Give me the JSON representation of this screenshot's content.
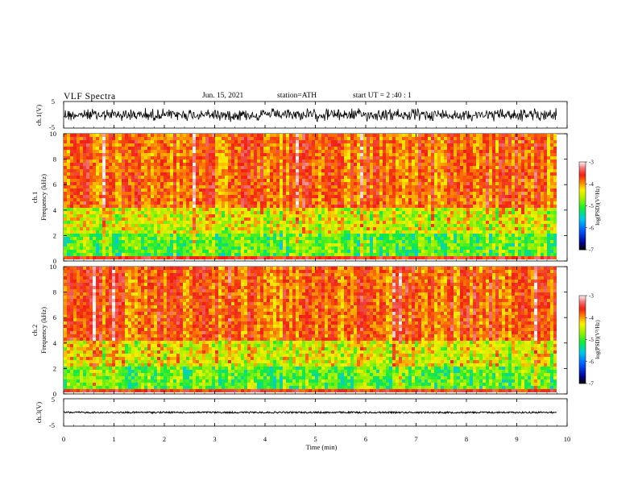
{
  "header": {
    "title": "VLF  Spectra",
    "date": "Jun. 15, 2021",
    "station": "station=ATH",
    "start": "start  UT  =    2  :40 : 1"
  },
  "chart_data": [
    {
      "type": "line",
      "panel": "ch1-waveform",
      "ylabel": "ch.1(V)",
      "y_ticks": [
        "5",
        "-5"
      ],
      "ylim": [
        -5,
        5
      ],
      "xlim": [
        0,
        10
      ],
      "data_range_min": [
        0,
        9.8
      ],
      "approx_amplitude_v": 2.0
    },
    {
      "type": "heatmap",
      "panel": "ch1-spectrogram",
      "ylabel": "Frequency (kHz)",
      "channel_label": "ch.1",
      "y_ticks": [
        "0",
        "2",
        "4",
        "6",
        "8",
        "10"
      ],
      "ylim": [
        0,
        10
      ],
      "xlim": [
        0,
        10
      ],
      "colorbar": {
        "label": "log(PSD)(V²/Hz)",
        "ticks": [
          "-3",
          "-4",
          "-5",
          "-6",
          "-7"
        ],
        "range": [
          -7,
          -3
        ]
      }
    },
    {
      "type": "heatmap",
      "panel": "ch2-spectrogram",
      "ylabel": "Frequency (kHz)",
      "channel_label": "ch.2",
      "y_ticks": [
        "0",
        "2",
        "4",
        "6",
        "8",
        "10"
      ],
      "ylim": [
        0,
        10
      ],
      "xlim": [
        0,
        10
      ],
      "colorbar": {
        "label": "log(PSD)(V²/Hz)",
        "ticks": [
          "-3",
          "-4",
          "-5",
          "-6",
          "-7"
        ],
        "range": [
          -7,
          -3
        ]
      }
    },
    {
      "type": "line",
      "panel": "ch3-waveform",
      "ylabel": "ch.3(V)",
      "y_ticks": [
        "5",
        "-5"
      ],
      "ylim": [
        -5,
        5
      ],
      "xlim": [
        0,
        10
      ],
      "approx_amplitude_v": 0.3,
      "xlabel": "Time  (min)",
      "x_ticks": [
        "0",
        "1",
        "2",
        "3",
        "4",
        "5",
        "6",
        "7",
        "8",
        "9",
        "10"
      ]
    }
  ]
}
